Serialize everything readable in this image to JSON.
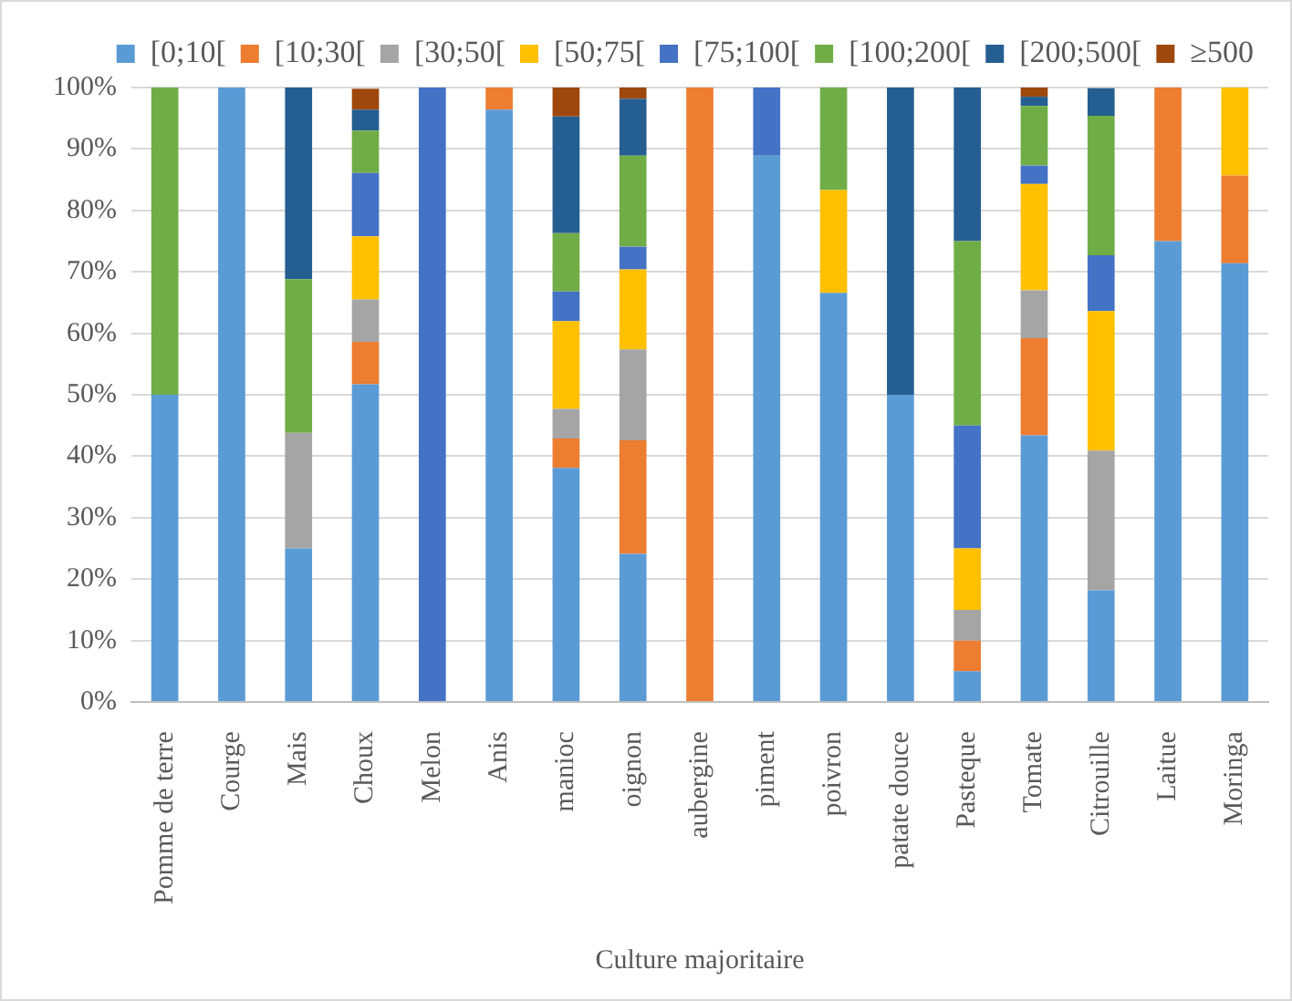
{
  "chart_data": {
    "type": "bar",
    "stacked": true,
    "xlabel": "Culture majoritaire",
    "categories": [
      "Pomme de terre",
      "Courge",
      "Mais",
      "Choux",
      "Melon",
      "Anis",
      "manioc",
      "oignon",
      "aubergine",
      "piment",
      "poivron",
      "patate douce",
      "Pasteque",
      "Tomate",
      "Citrouille",
      "Laitue",
      "Moringa"
    ],
    "series": [
      {
        "name": "[0;10[",
        "color": "#5b9bd5",
        "values": [
          50,
          100,
          25,
          51.7,
          0,
          96.4,
          38.1,
          24.1,
          0,
          88.9,
          66.6,
          50,
          5,
          43.4,
          18.2,
          75,
          71.4
        ]
      },
      {
        "name": "[10;30[",
        "color": "#ed7d31",
        "values": [
          0,
          0,
          0,
          6.9,
          0,
          3.6,
          4.8,
          18.5,
          100,
          0,
          0,
          0,
          5,
          15.8,
          0,
          25,
          14.3
        ]
      },
      {
        "name": "[30;50[",
        "color": "#a5a5a5",
        "values": [
          0,
          0,
          18.8,
          6.9,
          0,
          0,
          4.8,
          14.8,
          0,
          0,
          0,
          0,
          5,
          7.8,
          22.7,
          0,
          0
        ]
      },
      {
        "name": "[50;75[",
        "color": "#ffc000",
        "values": [
          0,
          0,
          0,
          10.3,
          0,
          0,
          14.3,
          13.0,
          0,
          0,
          16.7,
          0,
          10,
          17.3,
          22.7,
          0,
          14.3
        ]
      },
      {
        "name": "[75;100[",
        "color": "#4472c4",
        "values": [
          0,
          0,
          0,
          10.3,
          100,
          0,
          4.8,
          3.7,
          0,
          11.1,
          0,
          0,
          20,
          3.0,
          9.1,
          0,
          0
        ]
      },
      {
        "name": "[100;200[",
        "color": "#70ad47",
        "values": [
          50,
          0,
          25,
          6.9,
          0,
          0,
          9.5,
          14.8,
          0,
          0,
          16.7,
          0,
          30,
          9.7,
          22.7,
          0,
          0
        ]
      },
      {
        "name": "[200;500[",
        "color": "#255e91",
        "values": [
          0,
          0,
          31.2,
          3.4,
          0,
          0,
          19.0,
          9.3,
          0,
          0,
          0,
          50,
          25,
          1.5,
          4.5,
          0,
          0
        ]
      },
      {
        "name": "≥500",
        "color": "#9e480e",
        "values": [
          0,
          0,
          0,
          3.4,
          0,
          0,
          4.8,
          1.8,
          0,
          0,
          0,
          0,
          0,
          1.5,
          0,
          0,
          0
        ]
      }
    ],
    "ylim": [
      0,
      100
    ],
    "yticks": [
      {
        "value": 0,
        "label": "0%"
      },
      {
        "value": 10,
        "label": "10%"
      },
      {
        "value": 20,
        "label": "20%"
      },
      {
        "value": 30,
        "label": "30%"
      },
      {
        "value": 40,
        "label": "40%"
      },
      {
        "value": 50,
        "label": "50%"
      },
      {
        "value": 60,
        "label": "60%"
      },
      {
        "value": 70,
        "label": "70%"
      },
      {
        "value": 80,
        "label": "80%"
      },
      {
        "value": 90,
        "label": "90%"
      },
      {
        "value": 100,
        "label": "100%"
      }
    ],
    "grid": "y",
    "legend": "top"
  }
}
